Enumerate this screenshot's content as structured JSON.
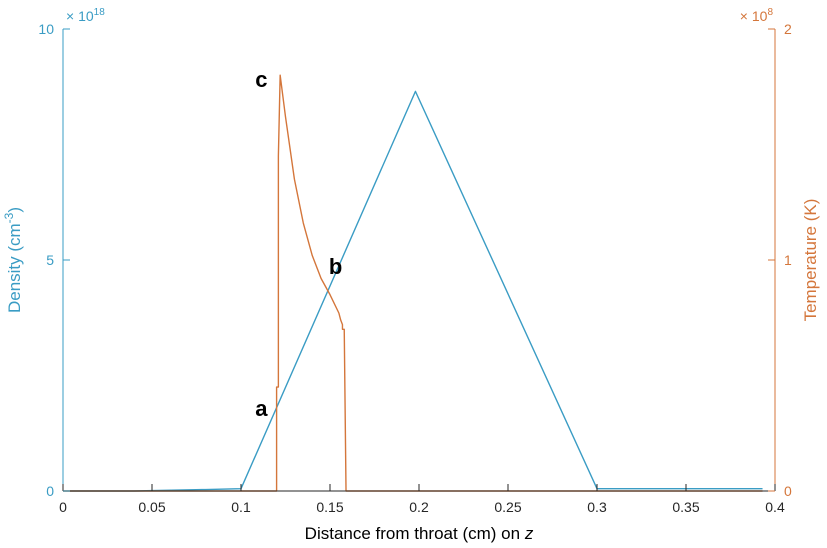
{
  "chart_data": {
    "type": "line",
    "xlabel": "Distance from throat (cm) on",
    "xlabel_var": "z",
    "ylabel_left_base": "Density (cm",
    "ylabel_left_exp": "-3",
    "ylabel_left_close": ")",
    "ylabel_right": "Temperature (K)",
    "left_multiplier_prefix": "× 10",
    "left_multiplier_exp": "18",
    "right_multiplier_prefix": "× 10",
    "right_multiplier_exp": "8",
    "xlim": [
      0,
      0.4
    ],
    "ylim_left": [
      0,
      10
    ],
    "ylim_right": [
      0,
      2
    ],
    "x_ticks": [
      "0",
      "0.05",
      "0.1",
      "0.15",
      "0.2",
      "0.25",
      "0.3",
      "0.35",
      "0.4"
    ],
    "left_ticks": [
      "0",
      "5",
      "10"
    ],
    "right_ticks": [
      "0",
      "1",
      "2"
    ],
    "colors": {
      "density": "#3a9cc4",
      "temperature": "#d4763b",
      "axis": "#262626"
    },
    "series": [
      {
        "axis": "left",
        "color": "#3a9cc4",
        "x": [
          0.0,
          0.04,
          0.078,
          0.08,
          0.1,
          0.198,
          0.3,
          0.393
        ],
        "y": [
          0.0,
          0.0,
          0.03,
          0.03,
          0.05,
          8.65,
          0.05,
          0.05
        ]
      },
      {
        "axis": "right",
        "color": "#d4763b",
        "x": [
          0.0,
          0.118,
          0.12,
          0.12,
          0.121,
          0.121,
          0.122,
          0.125,
          0.13,
          0.135,
          0.14,
          0.145,
          0.15,
          0.155,
          0.156,
          0.157,
          0.157,
          0.158,
          0.159,
          0.16,
          0.393
        ],
        "y": [
          0.0,
          0.0,
          0.0,
          0.45,
          0.45,
          1.45,
          1.8,
          1.62,
          1.35,
          1.16,
          1.02,
          0.92,
          0.85,
          0.77,
          0.74,
          0.72,
          0.7,
          0.7,
          0.0,
          0.0,
          0.0
        ]
      }
    ],
    "annotations": [
      {
        "text": "a",
        "x": 0.1205,
        "y": 1.78,
        "axis": "left"
      },
      {
        "text": "b",
        "x": 0.146,
        "y": 4.85,
        "axis": "left"
      },
      {
        "text": "c",
        "x": 0.1205,
        "y": 8.9,
        "axis": "left"
      }
    ]
  }
}
